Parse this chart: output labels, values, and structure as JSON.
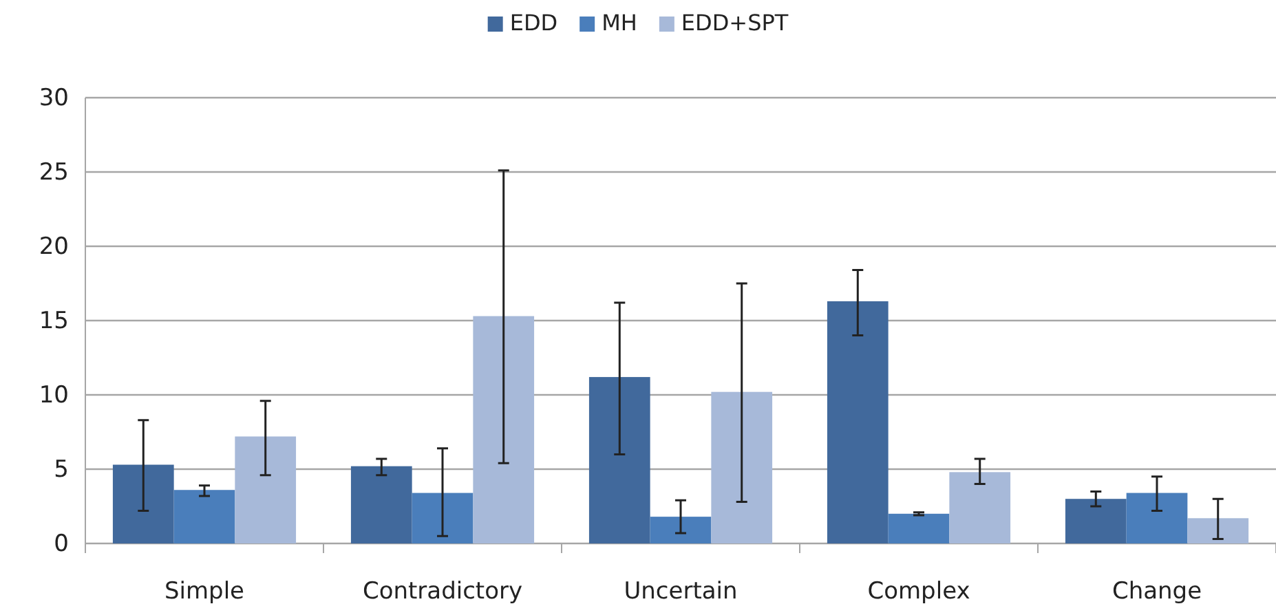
{
  "chart_data": {
    "type": "bar",
    "categories": [
      "Simple",
      "Contradictory",
      "Uncertain",
      "Complex",
      "Change"
    ],
    "series": [
      {
        "name": "EDD",
        "color": "#41699c",
        "values": [
          5.3,
          5.2,
          11.2,
          16.3,
          3.0
        ],
        "errors": [
          [
            2.2,
            8.3
          ],
          [
            4.6,
            5.7
          ],
          [
            6.0,
            16.2
          ],
          [
            14.0,
            18.4
          ],
          [
            2.5,
            3.5
          ]
        ]
      },
      {
        "name": "MH",
        "color": "#4a7ebb",
        "values": [
          3.6,
          3.4,
          1.8,
          2.0,
          3.4
        ],
        "errors": [
          [
            3.2,
            3.9
          ],
          [
            0.5,
            6.4
          ],
          [
            0.7,
            2.9
          ],
          [
            1.9,
            2.1
          ],
          [
            2.2,
            4.5
          ]
        ]
      },
      {
        "name": "EDD+SPT",
        "color": "#a7b9d9",
        "values": [
          7.2,
          15.3,
          10.2,
          4.8,
          1.7
        ],
        "errors": [
          [
            4.6,
            9.6
          ],
          [
            5.4,
            25.1
          ],
          [
            2.8,
            17.5
          ],
          [
            4.0,
            5.7
          ],
          [
            0.3,
            3.0
          ]
        ]
      }
    ],
    "ylim": [
      0,
      30
    ],
    "yticks": [
      0,
      5,
      10,
      15,
      20,
      25,
      30
    ],
    "grid": "y",
    "legend": "top"
  }
}
